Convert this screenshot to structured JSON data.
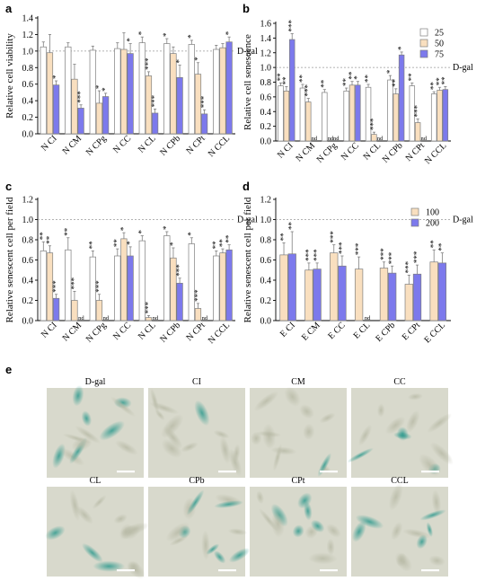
{
  "panels": {
    "a": "a",
    "b": "b",
    "c": "c",
    "d": "d",
    "e": "e"
  },
  "colors": {
    "gray": "#ffffff",
    "peach": "#f9dfbf",
    "blue": "#7c79ec",
    "edge": "#7f7f7f",
    "ref": "#9a9a9a"
  },
  "chart_data": [
    {
      "panel": "a",
      "type": "bar",
      "ylabel": "Relative cell viability",
      "ylim": [
        0,
        1.4
      ],
      "yticks": [
        "0.0",
        "0.2",
        "0.4",
        "0.6",
        "0.8",
        "1.0",
        "1.2",
        "1.4"
      ],
      "reference": {
        "value": 1.0,
        "label": "D-gal"
      },
      "categories": [
        "N CI",
        "N CM",
        "N CPg",
        "N CC",
        "N CL",
        "N CPb",
        "N CPt",
        "N CCL"
      ],
      "series": [
        {
          "key": "gray",
          "values": [
            1.05,
            1.05,
            1.01,
            1.03,
            1.1,
            1.09,
            1.08,
            1.02
          ],
          "errors": [
            0.06,
            0.05,
            0.05,
            0.07,
            0.07,
            0.06,
            0.05,
            0.05
          ],
          "marks": [
            "",
            "",
            "",
            "",
            "*",
            "*",
            "*",
            ""
          ]
        },
        {
          "key": "peach",
          "values": [
            0.98,
            0.66,
            0.37,
            1.02,
            0.7,
            0.97,
            0.72,
            1.04
          ],
          "errors": [
            0.22,
            0.18,
            0.15,
            0.2,
            0.05,
            0.08,
            0.14,
            0.05
          ],
          "marks": [
            "",
            "",
            "*",
            "",
            "***",
            "",
            "*",
            ""
          ]
        },
        {
          "key": "blue",
          "values": [
            0.59,
            0.31,
            0.45,
            0.97,
            0.25,
            0.68,
            0.24,
            1.11
          ],
          "errors": [
            0.05,
            0.04,
            0.04,
            0.12,
            0.05,
            0.15,
            0.05,
            0.06
          ],
          "marks": [
            "*",
            "***",
            "*",
            "*",
            "***",
            "*",
            "***",
            "*"
          ]
        }
      ]
    },
    {
      "panel": "b",
      "type": "bar",
      "ylabel": "Relative cell senescence",
      "ylim": [
        0,
        1.6
      ],
      "yticks": [
        "0.0",
        "0.2",
        "0.4",
        "0.6",
        "0.8",
        "1.0",
        "1.2",
        "1.4",
        "1.6"
      ],
      "reference": {
        "value": 1.0,
        "label": "D-gal"
      },
      "legend": [
        "25",
        "50",
        "75"
      ],
      "categories": [
        "N CI",
        "N CM",
        "N CPg",
        "N CC",
        "N CL",
        "N CPb",
        "N CPt",
        "N CCL"
      ],
      "series": [
        {
          "key": "gray",
          "values": [
            0.75,
            0.72,
            0.66,
            0.68,
            0.73,
            0.83,
            0.75,
            0.64
          ],
          "errors": [
            0.04,
            0.05,
            0.04,
            0.04,
            0.04,
            0.06,
            0.04,
            0.03
          ],
          "marks": [
            "**",
            "**",
            "**",
            "**",
            "**",
            "*",
            "**",
            "**"
          ]
        },
        {
          "key": "peach",
          "values": [
            0.68,
            0.53,
            0.0,
            0.76,
            0.09,
            0.64,
            0.25,
            0.69
          ],
          "errors": [
            0.06,
            0.05,
            0.0,
            0.05,
            0.03,
            0.07,
            0.05,
            0.04
          ],
          "marks": [
            "**",
            "***",
            "nd",
            "**",
            "***",
            "**",
            "***",
            "**"
          ]
        },
        {
          "key": "blue",
          "values": [
            1.38,
            0.0,
            0.0,
            0.76,
            0.0,
            1.17,
            0.0,
            0.7
          ],
          "errors": [
            0.08,
            0.0,
            0.0,
            0.05,
            0.0,
            0.04,
            0.0,
            0.04
          ],
          "marks": [
            "***",
            "nd",
            "nd",
            "*",
            "nd",
            "*",
            "nd",
            "**"
          ]
        }
      ]
    },
    {
      "panel": "c",
      "type": "bar",
      "ylabel": "Relative senescent cell per field",
      "ylim": [
        0,
        1.2
      ],
      "yticks": [
        "0.0",
        "0.2",
        "0.4",
        "0.6",
        "0.8",
        "1.0",
        "1.2"
      ],
      "reference": {
        "value": 1.0,
        "label": "D-gal"
      },
      "categories": [
        "N CI",
        "N CM",
        "N CPg",
        "N CC",
        "N CL",
        "N CPb",
        "N CPt",
        "N CCL"
      ],
      "series": [
        {
          "key": "gray",
          "values": [
            0.69,
            0.7,
            0.63,
            0.64,
            0.79,
            0.84,
            0.76,
            0.64
          ],
          "errors": [
            0.09,
            0.12,
            0.06,
            0.07,
            0.05,
            0.04,
            0.06,
            0.05
          ],
          "marks": [
            "**",
            "**",
            "**",
            "**",
            "*",
            "*",
            "*",
            "**"
          ]
        },
        {
          "key": "peach",
          "values": [
            0.67,
            0.2,
            0.2,
            0.81,
            0.03,
            0.62,
            0.12,
            0.67
          ],
          "errors": [
            0.07,
            0.09,
            0.06,
            0.06,
            0.02,
            0.1,
            0.05,
            0.04
          ],
          "marks": [
            "**",
            "***",
            "***",
            "*",
            "***",
            "*",
            "***",
            "**"
          ]
        },
        {
          "key": "blue",
          "values": [
            0.22,
            0.0,
            0.0,
            0.64,
            0.0,
            0.37,
            0.0,
            0.7
          ],
          "errors": [
            0.04,
            0.0,
            0.0,
            0.09,
            0.0,
            0.05,
            0.0,
            0.05
          ],
          "marks": [
            "***",
            "nd",
            "nd",
            "*",
            "nd",
            "***",
            "nd",
            "**"
          ]
        }
      ]
    },
    {
      "panel": "d",
      "type": "bar",
      "ylabel": "Relative senescent cell per field",
      "ylim": [
        0,
        1.2
      ],
      "yticks": [
        "0.0",
        "0.2",
        "0.4",
        "0.6",
        "0.8",
        "1.0",
        "1.2"
      ],
      "reference": {
        "value": 1.0,
        "label": "D-gal"
      },
      "legend": [
        "100",
        "200"
      ],
      "categories": [
        "E CI",
        "E CM",
        "E CC",
        "E CL",
        "E CPb",
        "E CPt",
        "E CCL"
      ],
      "series": [
        {
          "key": "peach",
          "values": [
            0.65,
            0.5,
            0.67,
            0.51,
            0.52,
            0.36,
            0.58
          ],
          "errors": [
            0.12,
            0.07,
            0.08,
            0.12,
            0.06,
            0.09,
            0.12
          ],
          "marks": [
            "**",
            "***",
            "***",
            "***",
            "***",
            "***",
            "**"
          ]
        },
        {
          "key": "blue",
          "values": [
            0.66,
            0.51,
            0.54,
            0.0,
            0.47,
            0.46,
            0.57
          ],
          "errors": [
            0.22,
            0.06,
            0.1,
            0.0,
            0.07,
            0.09,
            0.1
          ],
          "marks": [
            "**",
            "***",
            "***",
            "nd",
            "***",
            "***",
            "**"
          ]
        }
      ]
    }
  ],
  "images": {
    "row1": [
      "D-gal",
      "CI",
      "CM",
      "CC"
    ],
    "row2": [
      "CL",
      "CPb",
      "CPt",
      "CCL"
    ]
  }
}
